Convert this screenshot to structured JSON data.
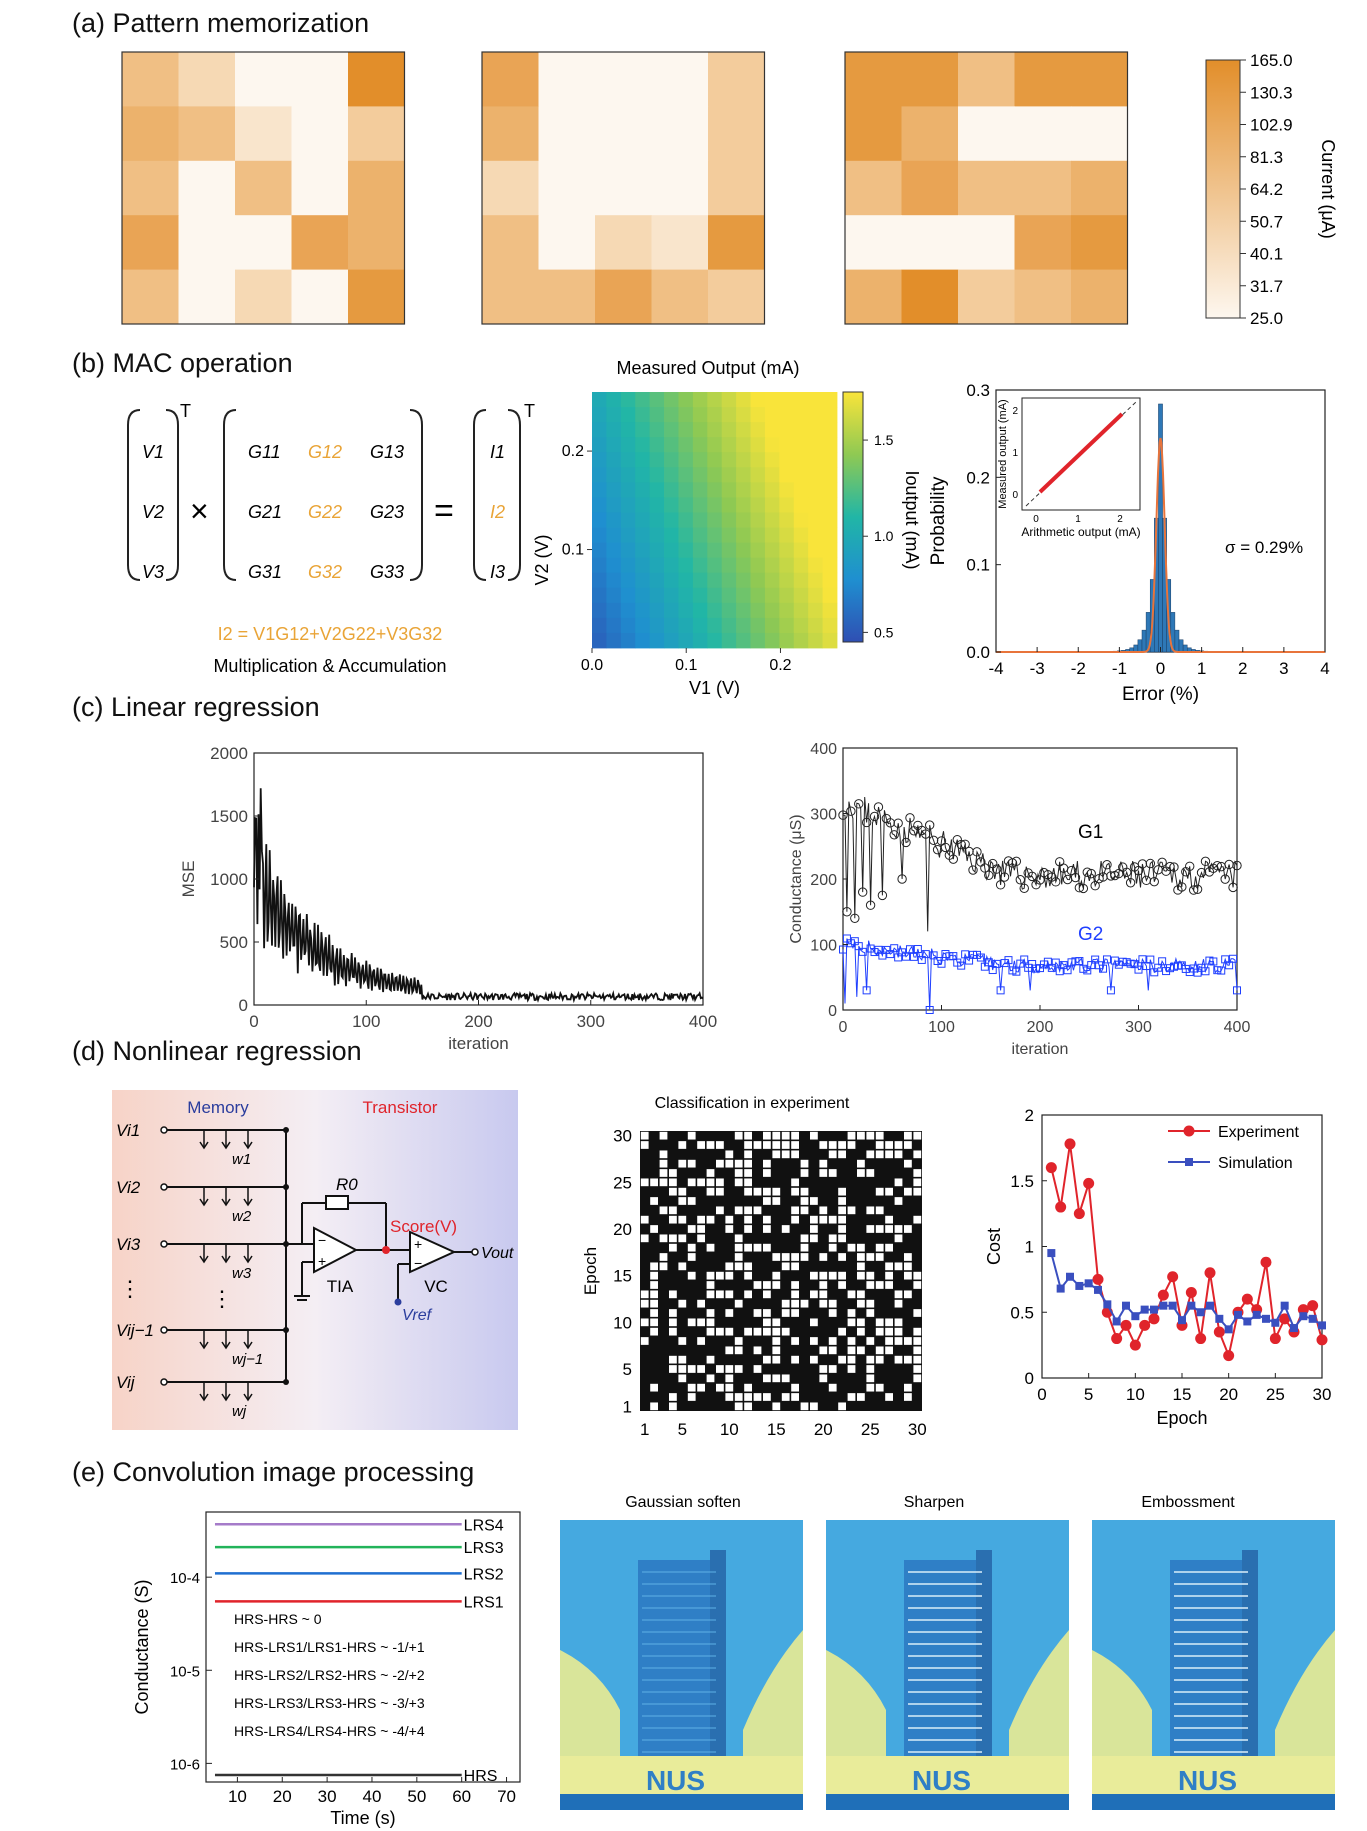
{
  "panels": {
    "a": "(a) Pattern memorization",
    "b": "(b) MAC operation",
    "c": "(c) Linear regression",
    "d": "(d) Nonlinear regression",
    "e": "(e) Convolution image processing"
  },
  "colors": {
    "orange_scale": [
      "#fdf7ef",
      "#f9e5cc",
      "#f6d9b4",
      "#f3cc9c",
      "#f0bf84",
      "#ecb26c",
      "#e9a455",
      "#e59a40",
      "#e28e2a"
    ],
    "blue_series": "#1f3fff",
    "red_series": "#e0242b",
    "sim_series": "#3a4fbf"
  },
  "chart_data": [
    {
      "id": "a",
      "type": "heatmap",
      "title": "",
      "colorbar_label": "Current (μA)",
      "colorbar_ticks": [
        "165.0",
        "130.3",
        "102.9",
        "81.3",
        "64.2",
        "50.7",
        "40.1",
        "31.7",
        "25.0"
      ],
      "maps": [
        [
          [
            4,
            2,
            0,
            0,
            8
          ],
          [
            5,
            4,
            1,
            0,
            3
          ],
          [
            4,
            0,
            4,
            0,
            5
          ],
          [
            6,
            0,
            0,
            6,
            5
          ],
          [
            4,
            0,
            2,
            0,
            7
          ]
        ],
        [
          [
            6,
            0,
            0,
            0,
            3
          ],
          [
            5,
            0,
            0,
            0,
            3
          ],
          [
            2,
            0,
            0,
            0,
            3
          ],
          [
            4,
            0,
            2,
            1,
            7
          ],
          [
            4,
            4,
            6,
            4,
            3
          ]
        ],
        [
          [
            7,
            7,
            4,
            7,
            7
          ],
          [
            7,
            5,
            0,
            0,
            0
          ],
          [
            4,
            6,
            4,
            4,
            5
          ],
          [
            0,
            0,
            0,
            6,
            7
          ],
          [
            5,
            8,
            3,
            4,
            5
          ]
        ]
      ]
    },
    {
      "id": "b-equation",
      "type": "table",
      "superscript": "T",
      "V": [
        "V1",
        "V2",
        "V3"
      ],
      "G": [
        [
          "G11",
          "G12",
          "G13"
        ],
        [
          "G21",
          "G22",
          "G23"
        ],
        [
          "G31",
          "G32",
          "G33"
        ]
      ],
      "I": [
        "I1",
        "I2",
        "I3"
      ],
      "times": "×",
      "equals": "=",
      "equation": "I2 = V1G12+V2G22+V3G32",
      "caption": "Multiplication & Accumulation"
    },
    {
      "id": "b-heatmap",
      "type": "heatmap",
      "title": "Measured Output (mA)",
      "xlabel": "V1 (V)",
      "ylabel": "V2 (V)",
      "xticks": [
        "0.0",
        "0.1",
        "0.2"
      ],
      "yticks": [
        "0.1",
        "0.2"
      ],
      "xlim": [
        0,
        0.26
      ],
      "ylim": [
        0,
        0.26
      ],
      "colorbar_label": "Ioutput (mA)",
      "colorbar_ticks": [
        "1.5",
        "1.0",
        "0.5"
      ],
      "value_range": [
        0.45,
        1.75
      ]
    },
    {
      "id": "b-hist",
      "type": "bar",
      "xlabel": "Error (%)",
      "ylabel": "Probability",
      "xlim": [
        -4,
        4
      ],
      "ylim": [
        0,
        0.3
      ],
      "xticks": [
        "-4",
        "-3",
        "-2",
        "-1",
        "0",
        "1",
        "2",
        "3",
        "4"
      ],
      "yticks": [
        "0.0",
        "0.1",
        "0.2",
        "0.3"
      ],
      "annotation": "σ = 0.29%",
      "inset_xlabel": "Arithmetic output (mA)",
      "inset_ylabel": "Measured output (mA)",
      "inset_ticks": [
        "0",
        "1",
        "2"
      ],
      "bins_x": [
        -1.2,
        -1.0,
        -0.8,
        -0.6,
        -0.4,
        -0.3,
        -0.2,
        -0.1,
        0.0,
        0.1,
        0.2,
        0.3,
        0.4,
        0.6,
        0.8,
        1.0,
        1.2
      ],
      "bins_y": [
        0.002,
        0.004,
        0.006,
        0.012,
        0.02,
        0.035,
        0.06,
        0.13,
        0.28,
        0.19,
        0.08,
        0.04,
        0.02,
        0.01,
        0.006,
        0.003,
        0.001
      ]
    },
    {
      "id": "c-mse",
      "type": "line",
      "xlabel": "iteration",
      "ylabel": "MSE",
      "xlim": [
        0,
        400
      ],
      "ylim": [
        0,
        2000
      ],
      "xticks": [
        "0",
        "100",
        "200",
        "300",
        "400"
      ],
      "yticks": [
        "0",
        "500",
        "1000",
        "1500",
        "2000"
      ]
    },
    {
      "id": "c-conductance",
      "type": "line",
      "xlabel": "iteration",
      "ylabel": "Conductance (μS)",
      "xlim": [
        0,
        400
      ],
      "ylim": [
        0,
        400
      ],
      "xticks": [
        "0",
        "100",
        "200",
        "300",
        "400"
      ],
      "yticks": [
        "0",
        "100",
        "200",
        "300",
        "400"
      ],
      "series": [
        {
          "name": "G1",
          "level_start": 320,
          "level_end": 205
        },
        {
          "name": "G2",
          "level_start": 100,
          "level_end": 68
        }
      ]
    },
    {
      "id": "d-circuit",
      "type": "table",
      "memory": "Memory",
      "transistor": "Transistor",
      "inputs": [
        "Vi1",
        "Vi2",
        "Vi3",
        "⋮",
        "Vij−1",
        "Vij"
      ],
      "weights": [
        "w1",
        "w2",
        "w3",
        "⋮",
        "wj−1",
        "wj"
      ],
      "R0": "R0",
      "score": "Score(V)",
      "tia": "TIA",
      "vc": "VC",
      "vout": "Vout",
      "vref": "Vref"
    },
    {
      "id": "d-classification",
      "type": "heatmap",
      "title": "Classification in experiment",
      "xlabel": "",
      "ylabel": "Epoch",
      "xticks": [
        "1",
        "5",
        "10",
        "15",
        "20",
        "25",
        "30"
      ],
      "yticks": [
        "1",
        "5",
        "10",
        "15",
        "20",
        "25",
        "30"
      ]
    },
    {
      "id": "d-cost",
      "type": "line",
      "xlabel": "Epoch",
      "ylabel": "Cost",
      "xlim": [
        0,
        30
      ],
      "ylim": [
        0,
        2
      ],
      "xticks": [
        "0",
        "5",
        "10",
        "15",
        "20",
        "25",
        "30"
      ],
      "yticks": [
        "0",
        "0.5",
        "1",
        "1.5",
        "2"
      ],
      "series": [
        {
          "name": "Experiment",
          "x": [
            1,
            2,
            3,
            4,
            5,
            6,
            7,
            8,
            9,
            10,
            11,
            12,
            13,
            14,
            15,
            16,
            17,
            18,
            19,
            20,
            21,
            22,
            23,
            24,
            25,
            26,
            27,
            28,
            29,
            30
          ],
          "values": [
            1.6,
            1.3,
            1.78,
            1.25,
            1.48,
            0.75,
            0.5,
            0.3,
            0.4,
            0.25,
            0.4,
            0.45,
            0.63,
            0.77,
            0.4,
            0.65,
            0.3,
            0.8,
            0.35,
            0.17,
            0.5,
            0.6,
            0.52,
            0.88,
            0.3,
            0.45,
            0.35,
            0.52,
            0.55,
            0.29
          ]
        },
        {
          "name": "Simulation",
          "x": [
            1,
            2,
            3,
            4,
            5,
            6,
            7,
            8,
            9,
            10,
            11,
            12,
            13,
            14,
            15,
            16,
            17,
            18,
            19,
            20,
            21,
            22,
            23,
            24,
            25,
            26,
            27,
            28,
            29,
            30
          ],
          "values": [
            0.95,
            0.68,
            0.77,
            0.7,
            0.72,
            0.67,
            0.56,
            0.43,
            0.55,
            0.47,
            0.52,
            0.52,
            0.55,
            0.55,
            0.44,
            0.55,
            0.5,
            0.55,
            0.45,
            0.37,
            0.48,
            0.43,
            0.48,
            0.45,
            0.42,
            0.55,
            0.38,
            0.47,
            0.45,
            0.4
          ]
        }
      ]
    },
    {
      "id": "e-conductance",
      "type": "line",
      "xlabel": "Time (s)",
      "ylabel": "Conductance (S)",
      "xlim": [
        3,
        73
      ],
      "xticks": [
        "10",
        "20",
        "30",
        "40",
        "50",
        "60",
        "70"
      ],
      "yticks": [
        "10-4",
        "10-5",
        "10-6"
      ],
      "log_scale_y": true,
      "series": [
        {
          "name": "LRS4",
          "level": 0.00037,
          "color": "#a57bc9"
        },
        {
          "name": "LRS3",
          "level": 0.00021,
          "color": "#22b35a"
        },
        {
          "name": "LRS2",
          "level": 0.00011,
          "color": "#1f6fd1"
        },
        {
          "name": "LRS1",
          "level": 5.5e-05,
          "color": "#e0242b"
        },
        {
          "name": "HRS",
          "level": 7.5e-07,
          "color": "#333333"
        }
      ],
      "annotations": [
        "HRS-HRS ~ 0",
        "HRS-LRS1/LRS1-HRS  ~ -1/+1",
        "HRS-LRS2/LRS2-HRS  ~ -2/+2",
        "HRS-LRS3/LRS3-HRS  ~ -3/+3",
        "HRS-LRS4/LRS4-HRS  ~ -4/+4"
      ]
    }
  ],
  "images": {
    "titles": [
      "Gaussian soften",
      "Sharpen",
      "Embossment"
    ],
    "logo_text": "NUS"
  }
}
